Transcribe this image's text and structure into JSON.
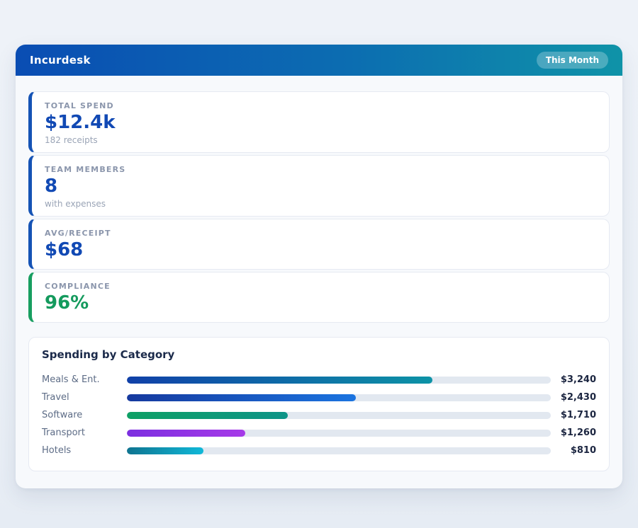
{
  "header": {
    "title": "Incurdesk",
    "period_badge": "This Month"
  },
  "stats": [
    {
      "label": "TOTAL SPEND",
      "value": "$12.4k",
      "sub": "182 receipts",
      "accent": "#1553b5",
      "value_color": "#1149b4"
    },
    {
      "label": "TEAM MEMBERS",
      "value": "8",
      "sub": "with expenses",
      "accent": "#1553b5",
      "value_color": "#1149b4"
    },
    {
      "label": "AVG/RECEIPT",
      "value": "$68",
      "sub": "",
      "accent": "#1553b5",
      "value_color": "#1149b4"
    },
    {
      "label": "COMPLIANCE",
      "value": "96%",
      "sub": "",
      "accent": "#189e60",
      "value_color": "#149a5d"
    }
  ],
  "chart_data": {
    "type": "bar",
    "orientation": "horizontal",
    "title": "Spending by Category",
    "categories": [
      "Meals & Ent.",
      "Travel",
      "Software",
      "Transport",
      "Hotels"
    ],
    "values": [
      3240,
      2430,
      1710,
      1260,
      810
    ],
    "xlim": [
      0,
      4500
    ],
    "track_color": "#e2e8f0",
    "bars": [
      {
        "label": "Meals & Ent.",
        "value": 3240,
        "value_label": "$3,240",
        "pct": 72,
        "color_from": "#1040a8",
        "color_to": "#0d93a6"
      },
      {
        "label": "Travel",
        "value": 2430,
        "value_label": "$2,430",
        "pct": 54,
        "color_from": "#16399e",
        "color_to": "#1b74e0"
      },
      {
        "label": "Software",
        "value": 1710,
        "value_label": "$1,710",
        "pct": 38,
        "color_from": "#0ea065",
        "color_to": "#0d9488"
      },
      {
        "label": "Transport",
        "value": 1260,
        "value_label": "$1,260",
        "pct": 28,
        "color_from": "#7c2fe0",
        "color_to": "#a63ae8"
      },
      {
        "label": "Hotels",
        "value": 810,
        "value_label": "$810",
        "pct": 18,
        "color_from": "#0f7490",
        "color_to": "#10b8d8"
      }
    ]
  }
}
